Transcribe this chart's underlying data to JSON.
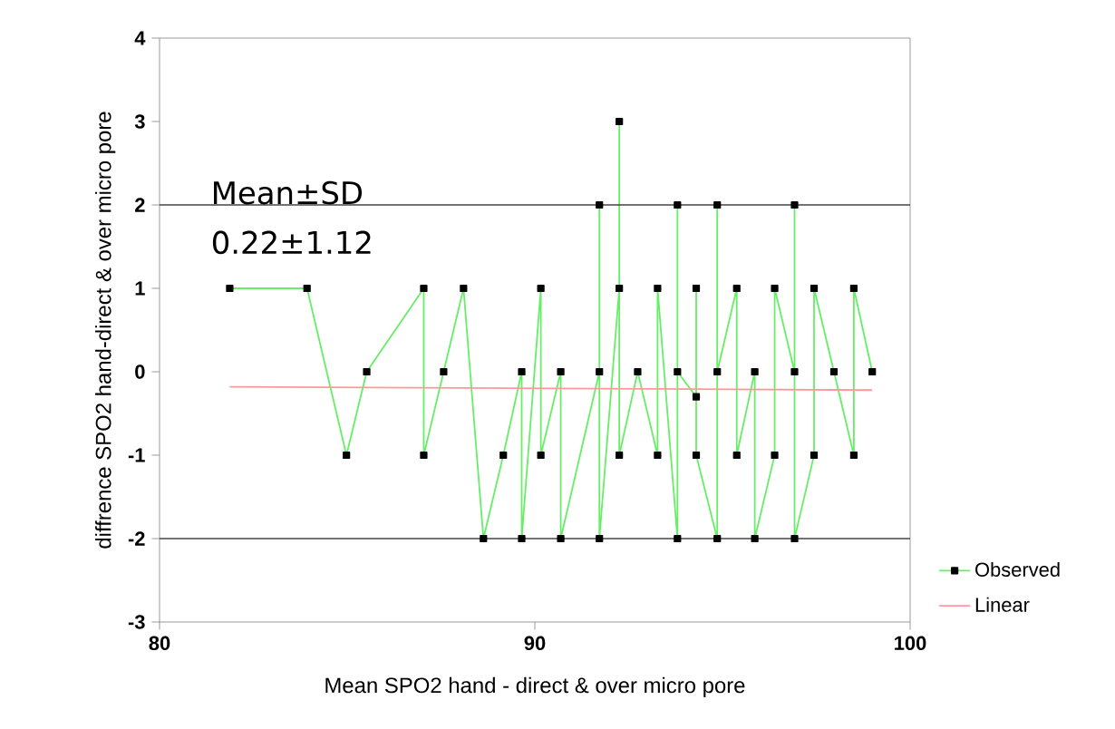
{
  "chart_data": {
    "type": "line",
    "xlabel": "Mean SPO2 hand - direct & over micro pore",
    "ylabel": "diffrence SPO2 hand-direct & over micro pore",
    "annotations": [
      "Mean±SD",
      "0.22±1.12"
    ],
    "xlim": [
      80,
      100
    ],
    "xticks": [
      80,
      90,
      100
    ],
    "ylim": [
      -3,
      4
    ],
    "yticks": [
      -3,
      -2,
      -1,
      0,
      1,
      2,
      3,
      4
    ],
    "grid": false,
    "legend": "bottom right",
    "ref_lines": [
      {
        "axis": "y",
        "value": 2,
        "color": "#444444"
      },
      {
        "axis": "y",
        "value": -2,
        "color": "#444444"
      }
    ],
    "series": [
      {
        "name": "Observed",
        "color": "#66ee66",
        "marker": "square",
        "x": [
          81.87,
          83.93,
          84.98,
          85.52,
          87.04,
          87.04,
          87.57,
          88.1,
          88.63,
          89.16,
          89.65,
          89.65,
          90.16,
          90.16,
          90.69,
          90.69,
          91.72,
          91.72,
          91.72,
          92.25,
          92.25,
          92.25,
          92.74,
          93.27,
          93.27,
          93.8,
          93.8,
          93.8,
          94.3,
          94.3,
          94.3,
          94.86,
          94.86,
          94.86,
          95.38,
          95.38,
          95.86,
          95.86,
          96.39,
          96.39,
          96.92,
          96.92,
          96.92,
          97.44,
          97.44,
          97.97,
          98.5,
          98.5,
          98.99
        ],
        "values": [
          1,
          1,
          -1,
          0,
          1,
          -1,
          0,
          1,
          -2,
          -1,
          0,
          -2,
          1,
          -1,
          0,
          -2,
          0,
          2,
          -2,
          1,
          3,
          -1,
          0,
          -1,
          1,
          -2,
          2,
          0,
          -0.3,
          1,
          -1,
          -2,
          2,
          0,
          1,
          -1,
          0,
          -2,
          -1,
          1,
          0,
          2,
          -2,
          -1,
          1,
          0,
          -1,
          1,
          0
        ]
      },
      {
        "name": "Linear",
        "color": "#ff9999",
        "marker": "none",
        "x": [
          81.87,
          98.99
        ],
        "values": [
          -0.18,
          -0.22
        ]
      }
    ]
  }
}
